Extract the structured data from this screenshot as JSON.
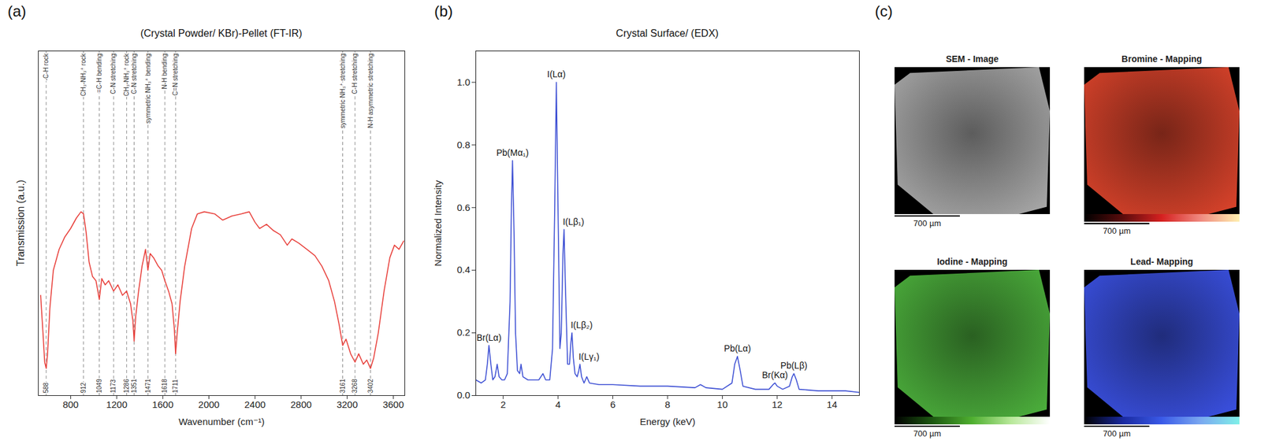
{
  "chart_data": [
    {
      "type": "line",
      "panel_label": "(a)",
      "title": "(Crystal Powder/ KBr)-Pellet (FT-IR)",
      "x_label": "Wavenumber (cm⁻¹)",
      "y_label": "Transmission (a.u.)",
      "x": [
        540,
        560,
        575,
        588,
        600,
        620,
        650,
        700,
        750,
        800,
        850,
        890,
        912,
        935,
        960,
        990,
        1020,
        1049,
        1070,
        1100,
        1130,
        1173,
        1210,
        1250,
        1286,
        1320,
        1340,
        1351,
        1365,
        1390,
        1420,
        1450,
        1471,
        1490,
        1520,
        1560,
        1590,
        1618,
        1650,
        1680,
        1700,
        1711,
        1725,
        1750,
        1790,
        1850,
        1900,
        1960,
        2050,
        2120,
        2200,
        2280,
        2350,
        2400,
        2440,
        2500,
        2560,
        2620,
        2680,
        2720,
        2780,
        2850,
        2920,
        2980,
        3040,
        3090,
        3130,
        3161,
        3190,
        3230,
        3268,
        3300,
        3340,
        3370,
        3402,
        3430,
        3470,
        3520,
        3570,
        3610,
        3650,
        3690
      ],
      "values": [
        0.48,
        0.3,
        0.16,
        0.13,
        0.2,
        0.42,
        0.6,
        0.7,
        0.76,
        0.8,
        0.85,
        0.88,
        0.87,
        0.78,
        0.64,
        0.57,
        0.55,
        0.46,
        0.56,
        0.53,
        0.55,
        0.5,
        0.53,
        0.48,
        0.5,
        0.44,
        0.36,
        0.26,
        0.38,
        0.5,
        0.62,
        0.7,
        0.6,
        0.68,
        0.66,
        0.62,
        0.6,
        0.55,
        0.5,
        0.44,
        0.32,
        0.2,
        0.3,
        0.45,
        0.62,
        0.8,
        0.87,
        0.88,
        0.87,
        0.84,
        0.86,
        0.87,
        0.88,
        0.83,
        0.8,
        0.82,
        0.79,
        0.77,
        0.72,
        0.75,
        0.73,
        0.7,
        0.67,
        0.62,
        0.55,
        0.45,
        0.34,
        0.24,
        0.27,
        0.2,
        0.16,
        0.2,
        0.15,
        0.17,
        0.13,
        0.18,
        0.3,
        0.5,
        0.66,
        0.72,
        0.7,
        0.74
      ],
      "color": "#e8413c",
      "xlim": [
        520,
        3700
      ],
      "ylim": [
        0,
        1.65
      ],
      "xticks": [
        800,
        1200,
        1600,
        2000,
        2400,
        2800,
        3200,
        3600
      ],
      "tick_labels": "x",
      "annotations": [
        {
          "x": 588,
          "label": "-C-H rock"
        },
        {
          "x": 912,
          "label": "CH₃-NH₃⁺ rock"
        },
        {
          "x": 1049,
          "label": "=C-H bending"
        },
        {
          "x": 1173,
          "label": "C-N stretching"
        },
        {
          "x": 1286,
          "label": "CH₃-NH₃⁺ rock"
        },
        {
          "x": 1351,
          "label": "C-N stretching"
        },
        {
          "x": 1471,
          "label": "symmetric NH₃⁺ bending"
        },
        {
          "x": 1618,
          "label": "N-H bending"
        },
        {
          "x": 1711,
          "label": "C=N stretching"
        },
        {
          "x": 3161,
          "label": "symmetric NH₃⁺ stretching"
        },
        {
          "x": 3268,
          "label": "C-H stretching"
        },
        {
          "x": 3402,
          "label": "N-H asymmetric stretching"
        }
      ]
    },
    {
      "type": "line",
      "panel_label": "(b)",
      "title": "Crystal Surface/ (EDX)",
      "x_label": "Energy (keV)",
      "y_label": "Normalized Intensity",
      "x": [
        1.0,
        1.2,
        1.35,
        1.42,
        1.48,
        1.55,
        1.62,
        1.7,
        1.78,
        1.85,
        1.95,
        2.05,
        2.15,
        2.25,
        2.3,
        2.34,
        2.4,
        2.45,
        2.52,
        2.6,
        2.65,
        2.72,
        2.9,
        3.1,
        3.3,
        3.45,
        3.55,
        3.7,
        3.8,
        3.88,
        3.94,
        4.0,
        4.07,
        4.12,
        4.18,
        4.22,
        4.27,
        4.35,
        4.42,
        4.47,
        4.51,
        4.56,
        4.62,
        4.7,
        4.76,
        4.8,
        4.86,
        4.95,
        5.05,
        5.15,
        5.5,
        6.0,
        7.0,
        8.0,
        9.0,
        9.2,
        9.4,
        10.0,
        10.35,
        10.45,
        10.55,
        10.65,
        10.75,
        11.2,
        11.7,
        11.85,
        11.92,
        12.0,
        12.2,
        12.45,
        12.55,
        12.61,
        12.7,
        12.8,
        13.5,
        14.5,
        15.0
      ],
      "values": [
        0.05,
        0.04,
        0.05,
        0.1,
        0.16,
        0.1,
        0.05,
        0.06,
        0.1,
        0.06,
        0.05,
        0.05,
        0.07,
        0.3,
        0.6,
        0.75,
        0.5,
        0.2,
        0.08,
        0.07,
        0.1,
        0.06,
        0.05,
        0.05,
        0.05,
        0.07,
        0.05,
        0.05,
        0.15,
        0.6,
        1.0,
        0.6,
        0.15,
        0.2,
        0.45,
        0.53,
        0.35,
        0.1,
        0.1,
        0.17,
        0.2,
        0.12,
        0.07,
        0.06,
        0.08,
        0.1,
        0.06,
        0.04,
        0.06,
        0.04,
        0.035,
        0.035,
        0.03,
        0.03,
        0.025,
        0.035,
        0.025,
        0.02,
        0.04,
        0.1,
        0.125,
        0.08,
        0.03,
        0.02,
        0.02,
        0.035,
        0.04,
        0.03,
        0.02,
        0.03,
        0.06,
        0.07,
        0.05,
        0.02,
        0.015,
        0.015,
        0.01
      ],
      "color": "#3f51d4",
      "xlim": [
        1,
        15
      ],
      "ylim": [
        0,
        1.1
      ],
      "xticks": [
        2,
        4,
        6,
        8,
        10,
        12,
        14
      ],
      "yticks": [
        {
          "value": 0,
          "label": "0.0"
        },
        0.2,
        0.4,
        0.6,
        0.8,
        {
          "value": 1,
          "label": "1.0"
        }
      ],
      "annotations": [
        {
          "x": 1.48,
          "y": 0.16,
          "label": "Br(Lα)"
        },
        {
          "x": 2.34,
          "y": 0.75,
          "label": "Pb(Mα₁)"
        },
        {
          "x": 3.94,
          "y": 1.0,
          "label": "I(Lα)"
        },
        {
          "x": 4.22,
          "y": 0.53,
          "label": "I(Lβ₁)"
        },
        {
          "x": 4.51,
          "y": 0.2,
          "label": "I(Lβ₂)"
        },
        {
          "x": 4.8,
          "y": 0.1,
          "label": "I(Lγ₁)"
        },
        {
          "x": 10.55,
          "y": 0.125,
          "label": "Pb(Lα)"
        },
        {
          "x": 11.92,
          "y": 0.04,
          "label": "Br(Kα)"
        },
        {
          "x": 12.61,
          "y": 0.07,
          "label": "Pb(Lβ)"
        }
      ]
    }
  ],
  "image_panel": {
    "panel_label": "(c)",
    "tiles": [
      {
        "title": "SEM - Image",
        "scale_bar": "700 µm",
        "color": "#a8a8a8"
      },
      {
        "title": "Bromine - Mapping",
        "scale_bar": "700 µm",
        "color": "#d9432b",
        "colormap": [
          "#000000",
          "#5a0c0c",
          "#d62020",
          "#f08a80",
          "#fff0b0"
        ]
      },
      {
        "title": "Iodine - Mapping",
        "scale_bar": "700 µm",
        "color": "#4caf3c",
        "colormap": [
          "#000000",
          "#1e5a12",
          "#4fb030",
          "#b8e89a",
          "#ffffff"
        ]
      },
      {
        "title": "Lead- Mapping",
        "scale_bar": "700 µm",
        "color": "#3a50e0",
        "colormap": [
          "#000000",
          "#1a2aa0",
          "#3a5ae8",
          "#7aa8f0",
          "#7ff0e8"
        ]
      }
    ]
  }
}
